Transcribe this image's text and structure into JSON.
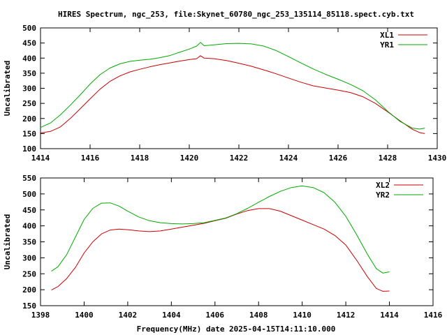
{
  "title": "HIRES Spectrum, ngc_253, file:Skynet_60780_ngc_253_135114_85118.spect.cyb.txt",
  "xlabel_bottom": "Frequency(MHz) date 2025-04-15T14:11:10.000",
  "chart_data": [
    {
      "type": "line",
      "ylabel": "Uncalibrated",
      "xlim": [
        1414,
        1430
      ],
      "ylim": [
        100,
        500
      ],
      "xticks": [
        1414,
        1416,
        1418,
        1420,
        1422,
        1424,
        1426,
        1428,
        1430
      ],
      "yticks": [
        100,
        150,
        200,
        250,
        300,
        350,
        400,
        450,
        500
      ],
      "legend": "top-right",
      "series": [
        {
          "name": "XL1",
          "color": "#cc0000",
          "points": [
            [
              1414.0,
              152
            ],
            [
              1414.4,
              157
            ],
            [
              1414.8,
              172
            ],
            [
              1415.2,
              200
            ],
            [
              1415.6,
              232
            ],
            [
              1416.0,
              265
            ],
            [
              1416.4,
              297
            ],
            [
              1416.8,
              323
            ],
            [
              1417.2,
              341
            ],
            [
              1417.6,
              354
            ],
            [
              1418.0,
              363
            ],
            [
              1418.4,
              371
            ],
            [
              1418.8,
              378
            ],
            [
              1419.2,
              384
            ],
            [
              1419.6,
              390
            ],
            [
              1420.0,
              395
            ],
            [
              1420.3,
              398
            ],
            [
              1420.45,
              408
            ],
            [
              1420.6,
              400
            ],
            [
              1421.0,
              398
            ],
            [
              1421.5,
              392
            ],
            [
              1422.0,
              383
            ],
            [
              1422.5,
              373
            ],
            [
              1423.0,
              361
            ],
            [
              1423.5,
              348
            ],
            [
              1424.0,
              334
            ],
            [
              1424.5,
              320
            ],
            [
              1425.0,
              308
            ],
            [
              1425.5,
              301
            ],
            [
              1426.0,
              294
            ],
            [
              1426.5,
              286
            ],
            [
              1427.0,
              272
            ],
            [
              1427.5,
              250
            ],
            [
              1428.0,
              222
            ],
            [
              1428.5,
              192
            ],
            [
              1429.0,
              164
            ],
            [
              1429.3,
              153
            ],
            [
              1429.5,
              150
            ]
          ]
        },
        {
          "name": "YR1",
          "color": "#00aa00",
          "points": [
            [
              1414.0,
              170
            ],
            [
              1414.4,
              185
            ],
            [
              1414.8,
              212
            ],
            [
              1415.2,
              244
            ],
            [
              1415.6,
              278
            ],
            [
              1416.0,
              314
            ],
            [
              1416.4,
              345
            ],
            [
              1416.8,
              367
            ],
            [
              1417.2,
              381
            ],
            [
              1417.6,
              389
            ],
            [
              1418.0,
              393
            ],
            [
              1418.4,
              396
            ],
            [
              1418.8,
              401
            ],
            [
              1419.2,
              408
            ],
            [
              1419.6,
              419
            ],
            [
              1420.0,
              430
            ],
            [
              1420.3,
              440
            ],
            [
              1420.45,
              452
            ],
            [
              1420.6,
              441
            ],
            [
              1421.0,
              444
            ],
            [
              1421.5,
              448
            ],
            [
              1422.0,
              449
            ],
            [
              1422.5,
              447
            ],
            [
              1423.0,
              440
            ],
            [
              1423.5,
              425
            ],
            [
              1424.0,
              405
            ],
            [
              1424.5,
              384
            ],
            [
              1425.0,
              364
            ],
            [
              1425.5,
              346
            ],
            [
              1426.0,
              330
            ],
            [
              1426.5,
              313
            ],
            [
              1427.0,
              292
            ],
            [
              1427.5,
              262
            ],
            [
              1428.0,
              224
            ],
            [
              1428.5,
              190
            ],
            [
              1429.0,
              168
            ],
            [
              1429.3,
              165
            ],
            [
              1429.5,
              168
            ]
          ]
        }
      ]
    },
    {
      "type": "line",
      "ylabel": "Uncalibrated",
      "xlim": [
        1398,
        1416
      ],
      "ylim": [
        150,
        550
      ],
      "xticks": [
        1398,
        1400,
        1402,
        1404,
        1406,
        1408,
        1410,
        1412,
        1414,
        1416
      ],
      "yticks": [
        150,
        200,
        250,
        300,
        350,
        400,
        450,
        500,
        550
      ],
      "legend": "top-right",
      "series": [
        {
          "name": "XL2",
          "color": "#cc0000",
          "points": [
            [
              1398.5,
              199
            ],
            [
              1398.8,
              210
            ],
            [
              1399.2,
              235
            ],
            [
              1399.6,
              270
            ],
            [
              1400.0,
              315
            ],
            [
              1400.4,
              350
            ],
            [
              1400.8,
              375
            ],
            [
              1401.2,
              387
            ],
            [
              1401.6,
              390
            ],
            [
              1402.0,
              388
            ],
            [
              1402.5,
              384
            ],
            [
              1403.0,
              382
            ],
            [
              1403.5,
              384
            ],
            [
              1404.0,
              390
            ],
            [
              1404.5,
              396
            ],
            [
              1405.0,
              402
            ],
            [
              1405.5,
              408
            ],
            [
              1406.0,
              416
            ],
            [
              1406.5,
              424
            ],
            [
              1407.0,
              437
            ],
            [
              1407.5,
              448
            ],
            [
              1408.0,
              454
            ],
            [
              1408.5,
              454
            ],
            [
              1409.0,
              446
            ],
            [
              1409.5,
              432
            ],
            [
              1410.0,
              418
            ],
            [
              1410.5,
              404
            ],
            [
              1411.0,
              390
            ],
            [
              1411.5,
              370
            ],
            [
              1412.0,
              340
            ],
            [
              1412.5,
              292
            ],
            [
              1413.0,
              240
            ],
            [
              1413.4,
              204
            ],
            [
              1413.7,
              195
            ],
            [
              1414.0,
              196
            ]
          ]
        },
        {
          "name": "YR2",
          "color": "#00aa00",
          "points": [
            [
              1398.5,
              258
            ],
            [
              1398.8,
              272
            ],
            [
              1399.2,
              310
            ],
            [
              1399.6,
              365
            ],
            [
              1400.0,
              420
            ],
            [
              1400.4,
              455
            ],
            [
              1400.8,
              471
            ],
            [
              1401.2,
              472
            ],
            [
              1401.6,
              462
            ],
            [
              1402.0,
              446
            ],
            [
              1402.5,
              428
            ],
            [
              1403.0,
              416
            ],
            [
              1403.5,
              410
            ],
            [
              1404.0,
              407
            ],
            [
              1404.5,
              406
            ],
            [
              1405.0,
              407
            ],
            [
              1405.5,
              410
            ],
            [
              1406.0,
              417
            ],
            [
              1406.5,
              425
            ],
            [
              1407.0,
              438
            ],
            [
              1407.5,
              455
            ],
            [
              1408.0,
              474
            ],
            [
              1408.5,
              492
            ],
            [
              1409.0,
              508
            ],
            [
              1409.5,
              520
            ],
            [
              1410.0,
              525
            ],
            [
              1410.5,
              520
            ],
            [
              1411.0,
              504
            ],
            [
              1411.5,
              474
            ],
            [
              1412.0,
              430
            ],
            [
              1412.5,
              372
            ],
            [
              1413.0,
              310
            ],
            [
              1413.4,
              266
            ],
            [
              1413.7,
              252
            ],
            [
              1414.0,
              256
            ]
          ]
        }
      ]
    }
  ]
}
